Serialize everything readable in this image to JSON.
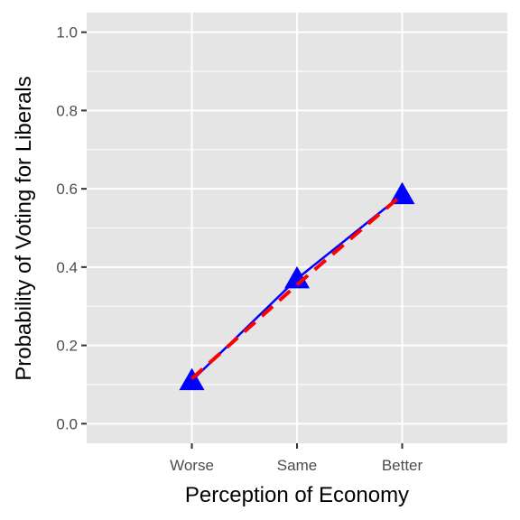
{
  "chart_data": {
    "type": "line",
    "title": "",
    "xlabel": "Perception of Economy",
    "ylabel": "Probability of Voting for Liberals",
    "categories": [
      "Worse",
      "Same",
      "Better"
    ],
    "ylim": [
      -0.05,
      1.05
    ],
    "yticks": [
      0.0,
      0.2,
      0.4,
      0.6,
      0.8,
      1.0
    ],
    "ytick_labels": [
      "0.0",
      "0.2",
      "0.4",
      "0.6",
      "0.8",
      "1.0"
    ],
    "grid": true,
    "legend": "none",
    "series": [
      {
        "style": "solid line with triangle markers",
        "color": "#0000ff",
        "values": [
          0.11,
          0.37,
          0.585
        ]
      },
      {
        "style": "dashed line",
        "color": "#ff0000",
        "values": [
          0.115,
          0.355,
          0.585
        ]
      }
    ],
    "panel_background": "#e5e5e5",
    "grid_color": "#ffffff"
  }
}
